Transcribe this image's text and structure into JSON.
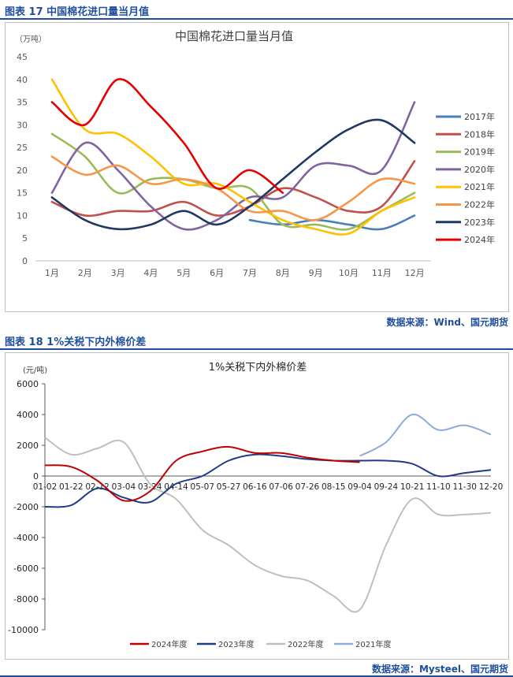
{
  "figures": [
    {
      "caption": "图表 17  中国棉花进口量当月值",
      "source": "数据来源：Wind、国元期货"
    },
    {
      "caption": "图表 18  1%关税下内外棉价差",
      "source": "数据来源：Mysteel、国元期货"
    }
  ],
  "chart_data": [
    {
      "type": "line",
      "title": "中国棉花进口量当月值",
      "unit": "（万吨）",
      "categories": [
        "1月",
        "2月",
        "3月",
        "4月",
        "5月",
        "6月",
        "7月",
        "8月",
        "9月",
        "10月",
        "11月",
        "12月"
      ],
      "ylim": [
        0,
        45
      ],
      "yticks": [
        0,
        5,
        10,
        15,
        20,
        25,
        30,
        35,
        40,
        45
      ],
      "grid": false,
      "legend": "right",
      "series": [
        {
          "name": "2017年",
          "color": "#4a7ebb",
          "values": [
            null,
            null,
            null,
            null,
            null,
            null,
            9,
            8,
            9,
            8,
            7,
            10
          ]
        },
        {
          "name": "2018年",
          "color": "#c0504d",
          "values": [
            13,
            10,
            11,
            11,
            13,
            10,
            12,
            16,
            14,
            11,
            12,
            22
          ]
        },
        {
          "name": "2019年",
          "color": "#9bbb59",
          "values": [
            28,
            23,
            15,
            18,
            18,
            16,
            16,
            8,
            8,
            7,
            11,
            15
          ]
        },
        {
          "name": "2020年",
          "color": "#8064a2",
          "values": [
            15,
            26,
            20,
            12,
            7,
            9,
            14,
            14,
            21,
            21,
            20,
            35
          ]
        },
        {
          "name": "2021年",
          "color": "#ffc000",
          "values": [
            40,
            29,
            28,
            23,
            17,
            17,
            13,
            9,
            7,
            6,
            11,
            14
          ]
        },
        {
          "name": "2022年",
          "color": "#f79646",
          "values": [
            23,
            19,
            21,
            17,
            18,
            16,
            11,
            11,
            9,
            13,
            18,
            17
          ]
        },
        {
          "name": "2023年",
          "color": "#1f3864",
          "values": [
            14,
            9,
            7,
            8,
            11,
            8,
            12,
            18,
            24,
            29,
            31,
            26
          ]
        },
        {
          "name": "2024年",
          "color": "#e60000",
          "values": [
            35,
            30,
            40,
            34,
            26,
            16,
            20,
            15,
            null,
            null,
            null,
            null
          ]
        }
      ]
    },
    {
      "type": "line",
      "title": "1%关税下内外棉价差",
      "unit": "(元/吨)",
      "categories": [
        "01-02",
        "01-22",
        "02-12",
        "03-04",
        "03-24",
        "04-14",
        "05-07",
        "05-27",
        "06-16",
        "07-06",
        "07-26",
        "08-15",
        "09-04",
        "09-24",
        "10-21",
        "11-10",
        "11-30",
        "12-20"
      ],
      "ylim": [
        -10000,
        6000
      ],
      "yticks": [
        -10000,
        -8000,
        -6000,
        -4000,
        -2000,
        0,
        2000,
        4000,
        6000
      ],
      "grid": false,
      "legend": "bottom",
      "series": [
        {
          "name": "2024年度",
          "color": "#c00000",
          "values": [
            700,
            600,
            -300,
            -1600,
            -1000,
            1000,
            1600,
            1900,
            1500,
            1500,
            1200,
            1000,
            900,
            null,
            null,
            null,
            null,
            null
          ]
        },
        {
          "name": "2023年度",
          "color": "#1f3c88",
          "values": [
            -2000,
            -1900,
            -800,
            -1400,
            -1700,
            -500,
            0,
            1000,
            1400,
            1300,
            1100,
            1000,
            1000,
            1000,
            800,
            0,
            200,
            400
          ]
        },
        {
          "name": "2022年度",
          "color": "#bfbfbf",
          "values": [
            2500,
            1400,
            1800,
            2200,
            -500,
            -1500,
            -3500,
            -4500,
            -5800,
            -6500,
            -6800,
            -7800,
            -8700,
            -4500,
            -1500,
            -2500,
            -2500,
            -2400
          ]
        },
        {
          "name": "2021年度",
          "color": "#8ea9db",
          "values": [
            null,
            null,
            null,
            null,
            null,
            null,
            null,
            null,
            null,
            null,
            null,
            null,
            1300,
            2200,
            4000,
            3000,
            3300,
            2700
          ]
        }
      ]
    }
  ]
}
